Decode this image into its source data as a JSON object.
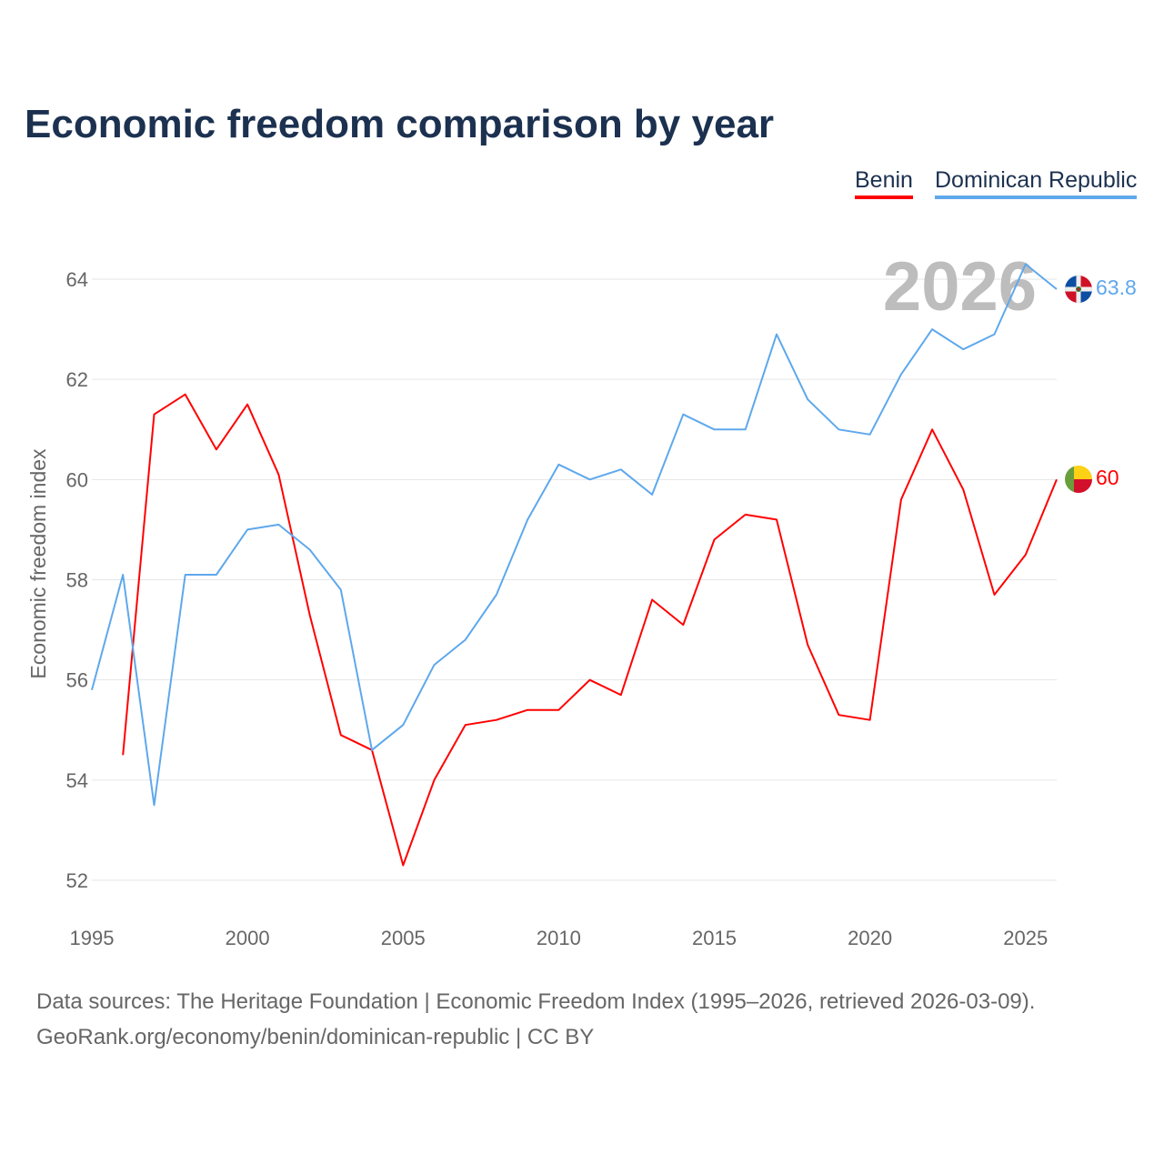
{
  "chart_data": {
    "type": "line",
    "title": "Economic freedom comparison by year",
    "xlabel": "",
    "ylabel": "Economic freedom index",
    "xlim": [
      1995,
      2026
    ],
    "ylim": [
      52,
      64
    ],
    "x_ticks": [
      1995,
      2000,
      2005,
      2010,
      2015,
      2020,
      2025
    ],
    "y_ticks": [
      52,
      54,
      56,
      58,
      60,
      62,
      64
    ],
    "grid": true,
    "legend_position": "top-right",
    "year_watermark": "2026",
    "series": [
      {
        "name": "Benin",
        "color": "#ff0000",
        "end_label": "60",
        "x": [
          1996,
          1997,
          1998,
          1999,
          2000,
          2001,
          2002,
          2003,
          2004,
          2005,
          2006,
          2007,
          2008,
          2009,
          2010,
          2011,
          2012,
          2013,
          2014,
          2015,
          2016,
          2017,
          2018,
          2019,
          2020,
          2021,
          2022,
          2023,
          2024,
          2025,
          2026
        ],
        "values": [
          54.5,
          61.3,
          61.7,
          60.6,
          61.5,
          60.1,
          57.3,
          54.9,
          54.6,
          52.3,
          54.0,
          55.1,
          55.2,
          55.4,
          55.4,
          56.0,
          55.7,
          57.6,
          57.1,
          58.8,
          59.3,
          59.2,
          56.7,
          55.3,
          55.2,
          59.6,
          61.0,
          59.8,
          57.7,
          58.5,
          60.0
        ]
      },
      {
        "name": "Dominican Republic",
        "color": "#5ea8ec",
        "end_label": "63.8",
        "x": [
          1995,
          1996,
          1997,
          1998,
          1999,
          2000,
          2001,
          2002,
          2003,
          2004,
          2005,
          2006,
          2007,
          2008,
          2009,
          2010,
          2011,
          2012,
          2013,
          2014,
          2015,
          2016,
          2017,
          2018,
          2019,
          2020,
          2021,
          2022,
          2023,
          2024,
          2025,
          2026
        ],
        "values": [
          55.8,
          58.1,
          53.5,
          58.1,
          58.1,
          59.0,
          59.1,
          58.6,
          57.8,
          54.6,
          55.1,
          56.3,
          56.8,
          57.7,
          59.2,
          60.3,
          60.0,
          60.2,
          59.7,
          61.3,
          61.0,
          61.0,
          62.9,
          61.6,
          61.0,
          60.9,
          62.1,
          63.0,
          62.6,
          62.9,
          64.3,
          63.8
        ]
      }
    ]
  },
  "footer": {
    "line1": "Data sources: The Heritage Foundation | Economic Freedom Index (1995–2026, retrieved 2026-03-09).",
    "line2": "GeoRank.org/economy/benin/dominican-republic | CC BY"
  }
}
